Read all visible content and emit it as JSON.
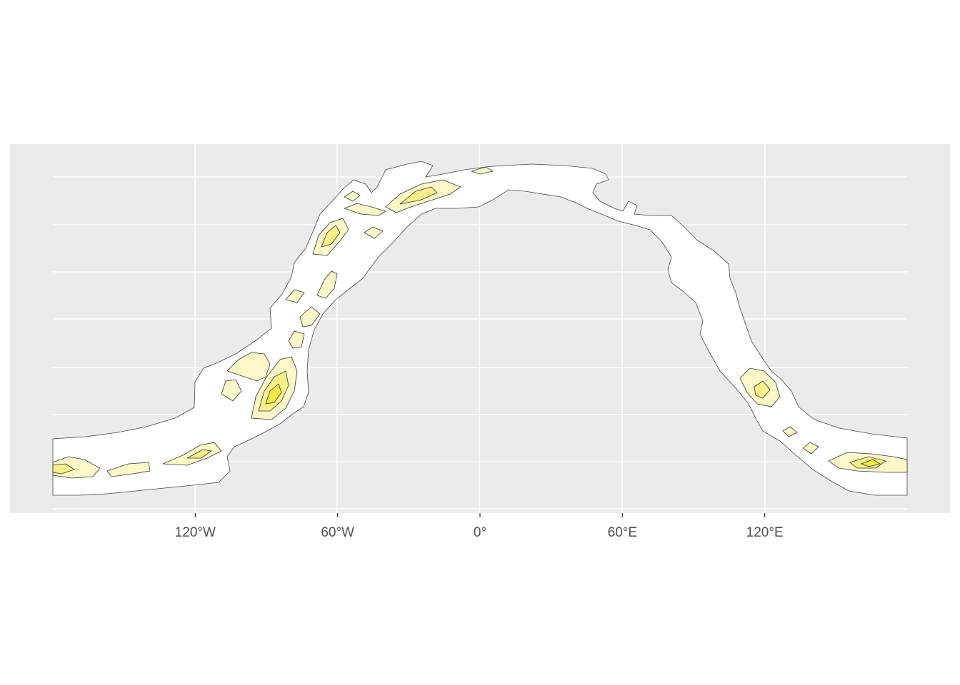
{
  "panel": {
    "background": "#ebebeb",
    "gridline_color": "#ffffff",
    "grid": true
  },
  "axes": {
    "x": {
      "ticks": [
        {
          "lon": -120,
          "label": "120°W"
        },
        {
          "lon": -60,
          "label": "60°W"
        },
        {
          "lon": 0,
          "label": "0°"
        },
        {
          "lon": 60,
          "label": "60°E"
        },
        {
          "lon": 120,
          "label": "120°E"
        }
      ],
      "range": [
        -180,
        180
      ]
    },
    "y": {
      "ticks_shown": false,
      "label": ""
    }
  },
  "map": {
    "band_fill": "#ffffff",
    "contour_line_color": "#333333",
    "fill_levels": [
      "#ffffff",
      "#fbf7c9",
      "#f7ef8a",
      "#f2e84a"
    ]
  }
}
